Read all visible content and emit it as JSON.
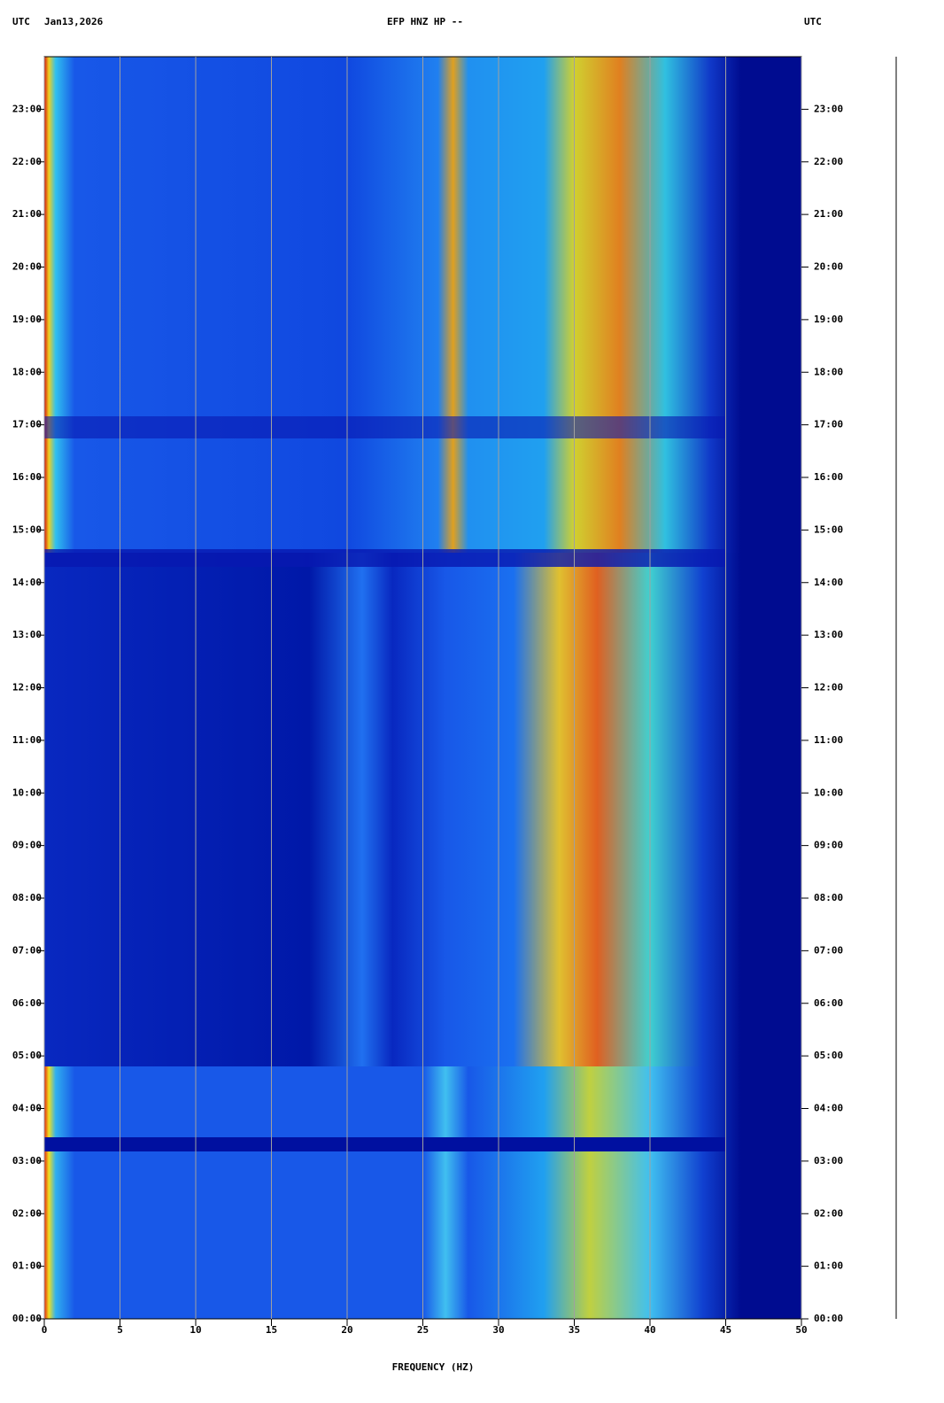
{
  "chart_data": {
    "type": "spectrogram",
    "title": "EFP HNZ HP --",
    "left_header": [
      "UTC",
      "Jan13,2026"
    ],
    "right_header": "UTC",
    "x_label": "FREQUENCY (HZ)",
    "xlim": [
      0,
      50
    ],
    "xticks": [
      0,
      5,
      10,
      15,
      20,
      25,
      30,
      35,
      40,
      45,
      50
    ],
    "ylim": [
      0,
      24
    ],
    "yticks": [
      {
        "value": 0,
        "label": "00:00"
      },
      {
        "value": 1,
        "label": "01:00"
      },
      {
        "value": 2,
        "label": "02:00"
      },
      {
        "value": 3,
        "label": "03:00"
      },
      {
        "value": 4,
        "label": "04:00"
      },
      {
        "value": 5,
        "label": "05:00"
      },
      {
        "value": 6,
        "label": "06:00"
      },
      {
        "value": 7,
        "label": "07:00"
      },
      {
        "value": 8,
        "label": "08:00"
      },
      {
        "value": 9,
        "label": "09:00"
      },
      {
        "value": 10,
        "label": "10:00"
      },
      {
        "value": 11,
        "label": "11:00"
      },
      {
        "value": 12,
        "label": "12:00"
      },
      {
        "value": 13,
        "label": "13:00"
      },
      {
        "value": 14,
        "label": "14:00"
      },
      {
        "value": 15,
        "label": "15:00"
      },
      {
        "value": 16,
        "label": "16:00"
      },
      {
        "value": 17,
        "label": "17:00"
      },
      {
        "value": 18,
        "label": "18:00"
      },
      {
        "value": 19,
        "label": "19:00"
      },
      {
        "value": 20,
        "label": "20:00"
      },
      {
        "value": 21,
        "label": "21:00"
      },
      {
        "value": 22,
        "label": "22:00"
      },
      {
        "value": 23,
        "label": "23:00"
      }
    ],
    "grid": true
  }
}
